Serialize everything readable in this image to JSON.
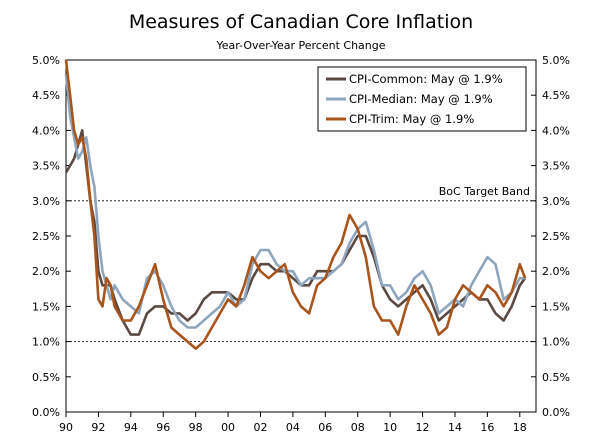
{
  "chart_data": {
    "type": "line",
    "title": "Measures of Canadian Core Inflation",
    "subtitle": "Year-Over-Year Percent Change",
    "xlim": [
      1990,
      2019
    ],
    "ylim": [
      0,
      5
    ],
    "x_ticks": [
      {
        "value": 1990,
        "label": "90"
      },
      {
        "value": 1992,
        "label": "92"
      },
      {
        "value": 1994,
        "label": "94"
      },
      {
        "value": 1996,
        "label": "96"
      },
      {
        "value": 1998,
        "label": "98"
      },
      {
        "value": 2000,
        "label": "00"
      },
      {
        "value": 2002,
        "label": "02"
      },
      {
        "value": 2004,
        "label": "04"
      },
      {
        "value": 2006,
        "label": "06"
      },
      {
        "value": 2008,
        "label": "08"
      },
      {
        "value": 2010,
        "label": "10"
      },
      {
        "value": 2012,
        "label": "12"
      },
      {
        "value": 2014,
        "label": "14"
      },
      {
        "value": 2016,
        "label": "16"
      },
      {
        "value": 2018,
        "label": "18"
      }
    ],
    "y_ticks": [
      {
        "value": 0,
        "label": "0.0%"
      },
      {
        "value": 0.5,
        "label": "0.5%"
      },
      {
        "value": 1,
        "label": "1.0%"
      },
      {
        "value": 1.5,
        "label": "1.5%"
      },
      {
        "value": 2,
        "label": "2.0%"
      },
      {
        "value": 2.5,
        "label": "2.5%"
      },
      {
        "value": 3,
        "label": "3.0%"
      },
      {
        "value": 3.5,
        "label": "3.5%"
      },
      {
        "value": 4,
        "label": "4.0%"
      },
      {
        "value": 4.5,
        "label": "4.5%"
      },
      {
        "value": 5,
        "label": "5.0%"
      }
    ],
    "reference_lines": [
      {
        "value": 3.0,
        "label": "BoC Target Band"
      },
      {
        "value": 1.0,
        "label": ""
      }
    ],
    "legend": "top-right",
    "series": [
      {
        "name": "CPI-Common: May @ 1.9%",
        "color": "#5a4a42",
        "x": [
          1990.0,
          1990.25,
          1990.5,
          1990.75,
          1991.0,
          1991.25,
          1991.5,
          1991.75,
          1992.0,
          1992.25,
          1992.5,
          1992.75,
          1993.0,
          1993.5,
          1994.0,
          1994.5,
          1995.0,
          1995.5,
          1996.0,
          1996.5,
          1997.0,
          1997.5,
          1998.0,
          1998.5,
          1999.0,
          1999.5,
          2000.0,
          2000.5,
          2001.0,
          2001.5,
          2002.0,
          2002.5,
          2003.0,
          2003.5,
          2004.0,
          2004.5,
          2005.0,
          2005.5,
          2006.0,
          2006.5,
          2007.0,
          2007.5,
          2008.0,
          2008.5,
          2009.0,
          2009.5,
          2010.0,
          2010.5,
          2011.0,
          2011.5,
          2012.0,
          2012.5,
          2013.0,
          2013.5,
          2014.0,
          2014.5,
          2015.0,
          2015.5,
          2016.0,
          2016.5,
          2017.0,
          2017.5,
          2018.0,
          2018.33
        ],
        "y": [
          3.4,
          3.5,
          3.6,
          3.8,
          4.0,
          3.5,
          3.0,
          2.7,
          2.0,
          1.8,
          1.8,
          1.8,
          1.6,
          1.3,
          1.1,
          1.1,
          1.4,
          1.5,
          1.5,
          1.4,
          1.4,
          1.3,
          1.4,
          1.6,
          1.7,
          1.7,
          1.7,
          1.6,
          1.6,
          1.9,
          2.1,
          2.1,
          2.0,
          2.0,
          1.9,
          1.8,
          1.8,
          2.0,
          2.0,
          2.0,
          2.1,
          2.3,
          2.5,
          2.5,
          2.2,
          1.8,
          1.6,
          1.5,
          1.6,
          1.7,
          1.8,
          1.6,
          1.3,
          1.4,
          1.5,
          1.6,
          1.7,
          1.6,
          1.6,
          1.4,
          1.3,
          1.5,
          1.8,
          1.9
        ]
      },
      {
        "name": "CPI-Median: May @ 1.9%",
        "color": "#8ea6bd",
        "x": [
          1990.0,
          1990.25,
          1990.5,
          1990.75,
          1991.0,
          1991.25,
          1991.5,
          1991.75,
          1992.0,
          1992.25,
          1992.5,
          1992.75,
          1993.0,
          1993.5,
          1994.0,
          1994.5,
          1995.0,
          1995.5,
          1996.0,
          1996.5,
          1997.0,
          1997.5,
          1998.0,
          1998.5,
          1999.0,
          1999.5,
          2000.0,
          2000.5,
          2001.0,
          2001.5,
          2002.0,
          2002.5,
          2003.0,
          2003.5,
          2004.0,
          2004.5,
          2005.0,
          2005.5,
          2006.0,
          2006.5,
          2007.0,
          2007.5,
          2008.0,
          2008.5,
          2009.0,
          2009.5,
          2010.0,
          2010.5,
          2011.0,
          2011.5,
          2012.0,
          2012.5,
          2013.0,
          2013.5,
          2014.0,
          2014.5,
          2015.0,
          2015.5,
          2016.0,
          2016.5,
          2017.0,
          2017.5,
          2018.0,
          2018.33
        ],
        "y": [
          4.8,
          4.2,
          3.9,
          3.6,
          3.7,
          3.9,
          3.5,
          3.2,
          2.5,
          2.0,
          1.8,
          1.6,
          1.8,
          1.6,
          1.5,
          1.4,
          1.9,
          2.0,
          1.8,
          1.5,
          1.3,
          1.2,
          1.2,
          1.3,
          1.4,
          1.5,
          1.7,
          1.5,
          1.6,
          2.1,
          2.3,
          2.3,
          2.1,
          2.0,
          2.0,
          1.8,
          1.9,
          1.9,
          1.9,
          2.0,
          2.1,
          2.4,
          2.6,
          2.7,
          2.3,
          1.8,
          1.8,
          1.6,
          1.7,
          1.9,
          2.0,
          1.8,
          1.4,
          1.5,
          1.6,
          1.5,
          1.8,
          2.0,
          2.2,
          2.1,
          1.6,
          1.7,
          1.9,
          1.9
        ]
      },
      {
        "name": "CPI-Trim: May @ 1.9%",
        "color": "#a8541b",
        "x": [
          1990.0,
          1990.25,
          1990.5,
          1990.75,
          1991.0,
          1991.25,
          1991.5,
          1991.75,
          1992.0,
          1992.25,
          1992.5,
          1992.75,
          1993.0,
          1993.5,
          1994.0,
          1994.5,
          1995.0,
          1995.5,
          1996.0,
          1996.5,
          1997.0,
          1997.5,
          1998.0,
          1998.5,
          1999.0,
          1999.5,
          2000.0,
          2000.5,
          2001.0,
          2001.5,
          2002.0,
          2002.5,
          2003.0,
          2003.5,
          2004.0,
          2004.5,
          2005.0,
          2005.5,
          2006.0,
          2006.5,
          2007.0,
          2007.5,
          2008.0,
          2008.5,
          2009.0,
          2009.5,
          2010.0,
          2010.5,
          2011.0,
          2011.5,
          2012.0,
          2012.5,
          2013.0,
          2013.5,
          2014.0,
          2014.5,
          2015.0,
          2015.5,
          2016.0,
          2016.5,
          2017.0,
          2017.5,
          2018.0,
          2018.33
        ],
        "y": [
          5.0,
          4.5,
          4.0,
          3.8,
          3.9,
          3.6,
          3.0,
          2.5,
          1.6,
          1.5,
          1.9,
          1.8,
          1.5,
          1.3,
          1.3,
          1.5,
          1.8,
          2.1,
          1.6,
          1.2,
          1.1,
          1.0,
          0.9,
          1.0,
          1.2,
          1.4,
          1.6,
          1.5,
          1.8,
          2.2,
          2.0,
          1.9,
          2.0,
          2.1,
          1.7,
          1.5,
          1.4,
          1.8,
          1.9,
          2.2,
          2.4,
          2.8,
          2.6,
          2.2,
          1.5,
          1.3,
          1.3,
          1.1,
          1.5,
          1.8,
          1.6,
          1.4,
          1.1,
          1.2,
          1.6,
          1.8,
          1.7,
          1.6,
          1.8,
          1.7,
          1.5,
          1.7,
          2.1,
          1.9
        ]
      }
    ]
  }
}
